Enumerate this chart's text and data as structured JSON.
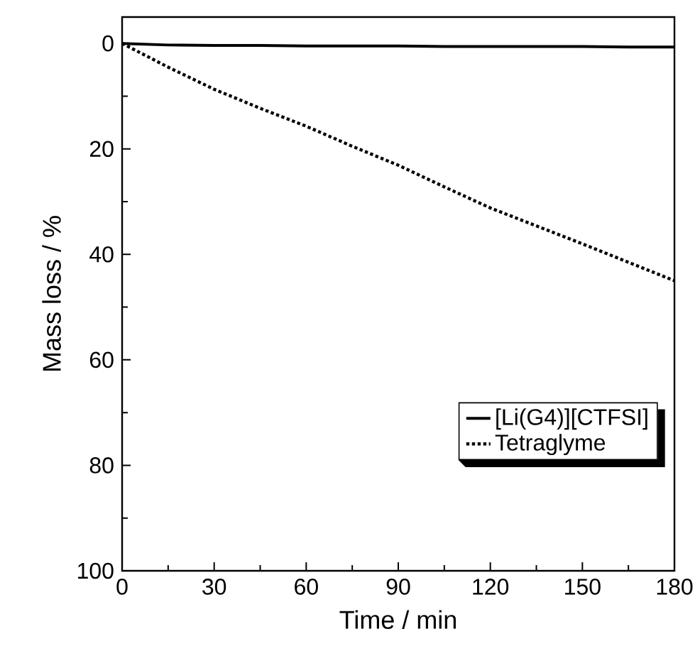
{
  "chart_data": {
    "type": "line",
    "xlabel": "Time / min",
    "ylabel": "Mass loss / %",
    "x": [
      0,
      15,
      30,
      45,
      60,
      75,
      90,
      105,
      120,
      135,
      150,
      165,
      180
    ],
    "series": [
      {
        "name": "[Li(G4)][CTFSI]",
        "color": "#000000",
        "line_style": "solid",
        "values": [
          0,
          0.3,
          0.4,
          0.4,
          0.5,
          0.5,
          0.5,
          0.6,
          0.6,
          0.6,
          0.6,
          0.7,
          0.7
        ]
      },
      {
        "name": "Tetraglyme",
        "color": "#000000",
        "line_style": "dotted",
        "values": [
          0,
          4.5,
          8.7,
          12.3,
          15.7,
          19.5,
          23.1,
          27.2,
          31.2,
          34.6,
          38,
          41.5,
          45
        ]
      }
    ],
    "xlim": [
      0,
      180
    ],
    "ylim": [
      100,
      -5
    ],
    "xticks": [
      0,
      30,
      60,
      90,
      120,
      150,
      180
    ],
    "yticks": [
      0,
      20,
      40,
      60,
      80,
      100
    ],
    "grid": false,
    "legend": "bottom right",
    "marker": "none"
  }
}
